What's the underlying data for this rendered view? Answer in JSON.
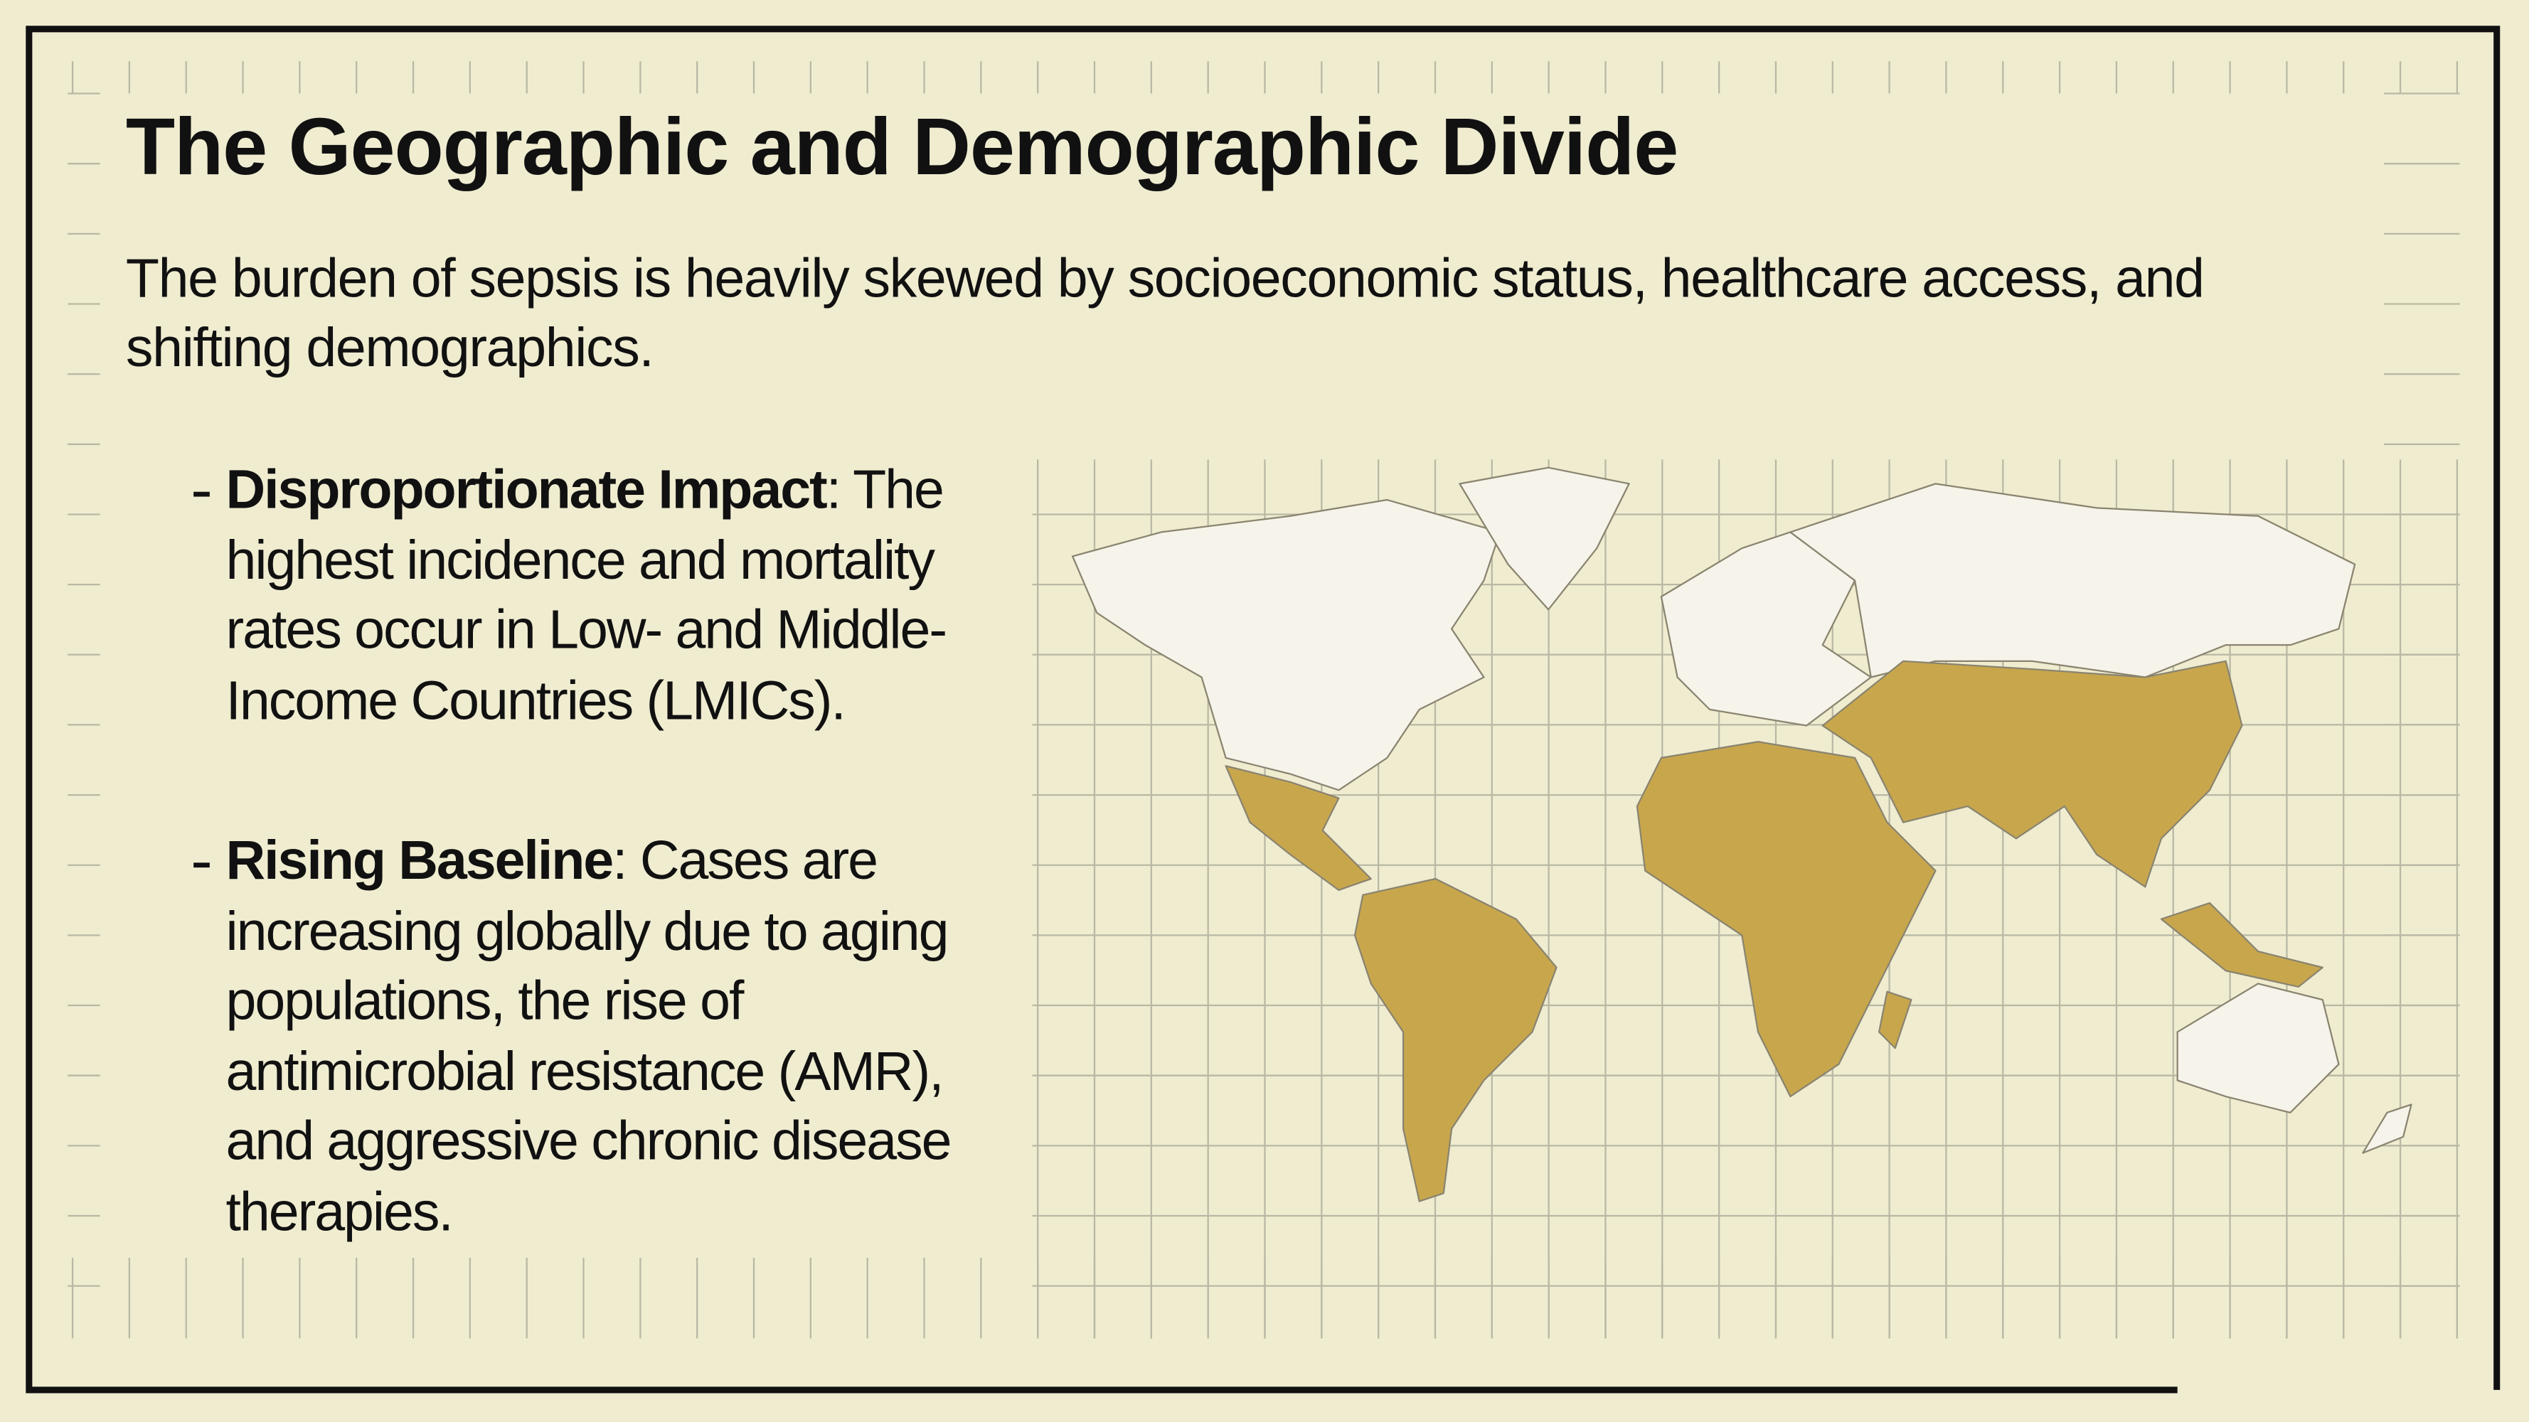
{
  "header": {
    "title": "The Geographic and Demographic Divide",
    "subtitle": "The burden of sepsis is heavily skewed by socioeconomic status, healthcare access, and shifting demographics."
  },
  "bullets": [
    {
      "label": "Disproportionate Impact",
      "text": ": The highest incidence and mortality rates occur in Low- and Middle-Income Countries (LMICs)."
    },
    {
      "label": "Rising Baseline",
      "text": ": Cases are increasing globally due to aging populations, the rise of antimicrobial resistance (AMR), and aggressive chronic disease therapies."
    }
  ]
}
